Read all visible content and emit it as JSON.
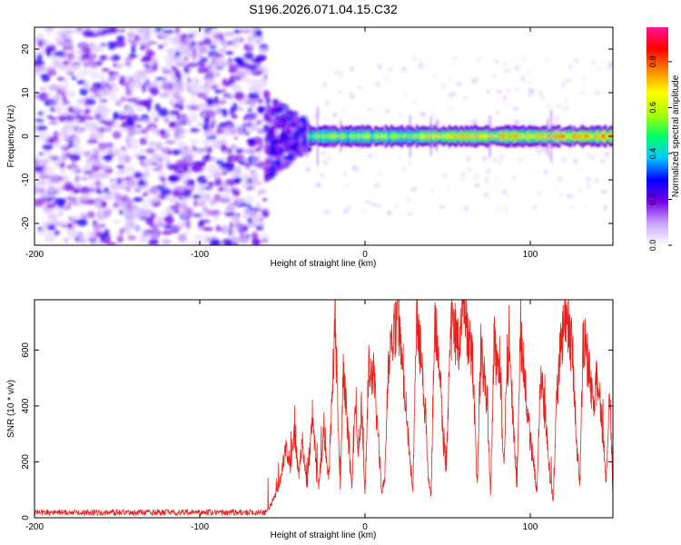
{
  "title": "S196.2026.071.04.15.C32",
  "chart_data": [
    {
      "type": "heatmap",
      "title": "S196.2026.071.04.15.C32",
      "xlabel": "Height of straight line (km)",
      "ylabel": "Frequency (Hz)",
      "xlim": [
        -200,
        150
      ],
      "ylim": [
        -25,
        25
      ],
      "xticks": [
        -200,
        -100,
        0,
        100
      ],
      "yticks": [
        -20,
        -10,
        0,
        10,
        20
      ],
      "colorbar": {
        "label": "Normalized spectral amplitude",
        "range": [
          0,
          0.95
        ],
        "ticks": [
          "0.0",
          "0.2",
          "0.4",
          "0.6",
          "0.8"
        ],
        "tick_values": [
          0,
          0.2,
          0.4,
          0.6,
          0.8
        ],
        "colormap": [
          "#ffffff",
          "#c9a6ff",
          "#7a00e6",
          "#0000ff",
          "#00c8ff",
          "#00ff66",
          "#aaff00",
          "#ffff00",
          "#ff8800",
          "#ff0000",
          "#ff1493"
        ]
      },
      "regions": [
        {
          "name": "noise",
          "x": [
            -200,
            -60
          ],
          "freq_range": [
            -25,
            25
          ],
          "amplitude": [
            0.0,
            0.25
          ]
        },
        {
          "name": "transition",
          "x": [
            -60,
            -35
          ],
          "freq_range": [
            -10,
            10
          ],
          "amplitude": [
            0.1,
            0.3
          ]
        },
        {
          "name": "signal-band",
          "x": [
            -35,
            150
          ],
          "freq_center": 0,
          "freq_halfwidth": 1.2,
          "amplitude": [
            0.3,
            0.9
          ]
        }
      ]
    },
    {
      "type": "line",
      "xlabel": "Height of straight line (km)",
      "ylabel": "SNR (10 * v/v)",
      "xlim": [
        -200,
        150
      ],
      "ylim": [
        0,
        780
      ],
      "xticks": [
        -200,
        -100,
        0,
        100
      ],
      "yticks": [
        0,
        200,
        400,
        600
      ],
      "line_color": "#e8221c",
      "series": [
        {
          "name": "SNR",
          "x": [
            -200,
            -60,
            -57,
            -52,
            -48,
            -45,
            -43,
            -40,
            -38,
            -35,
            -32,
            -30,
            -28,
            -25,
            -22,
            -20,
            -18,
            -16,
            -15,
            -13,
            -10,
            -8,
            -6,
            -4,
            -2,
            0,
            2,
            5,
            8,
            10,
            12,
            14,
            16,
            18,
            20,
            21,
            23,
            25,
            27,
            29,
            31,
            33,
            35,
            37,
            38,
            40,
            42,
            44,
            46,
            47,
            49,
            51,
            53,
            55,
            57,
            58,
            60,
            61,
            63,
            65,
            67,
            68,
            70,
            72,
            74,
            76,
            78,
            80,
            82,
            84,
            86,
            88,
            90,
            92,
            94,
            96,
            98,
            100,
            102,
            104,
            106,
            108,
            110,
            112,
            114,
            116,
            118,
            120,
            122,
            124,
            126,
            128,
            130,
            132,
            134,
            136,
            138,
            140,
            142,
            144,
            146,
            148,
            150
          ],
          "values": [
            15,
            20,
            45,
            120,
            260,
            180,
            320,
            150,
            280,
            100,
            350,
            230,
            120,
            300,
            140,
            420,
            720,
            300,
            120,
            540,
            260,
            100,
            380,
            200,
            420,
            80,
            500,
            520,
            300,
            80,
            150,
            560,
            600,
            680,
            740,
            620,
            500,
            380,
            230,
            90,
            700,
            620,
            500,
            320,
            150,
            70,
            680,
            650,
            520,
            300,
            150,
            540,
            690,
            650,
            600,
            720,
            760,
            680,
            620,
            580,
            250,
            120,
            600,
            520,
            400,
            80,
            600,
            560,
            450,
            180,
            560,
            580,
            300,
            100,
            640,
            550,
            400,
            280,
            200,
            80,
            480,
            430,
            300,
            150,
            60,
            420,
            600,
            680,
            720,
            650,
            580,
            260,
            120,
            640,
            600,
            520,
            380,
            480,
            450,
            300,
            120,
            500,
            80
          ]
        }
      ]
    }
  ]
}
